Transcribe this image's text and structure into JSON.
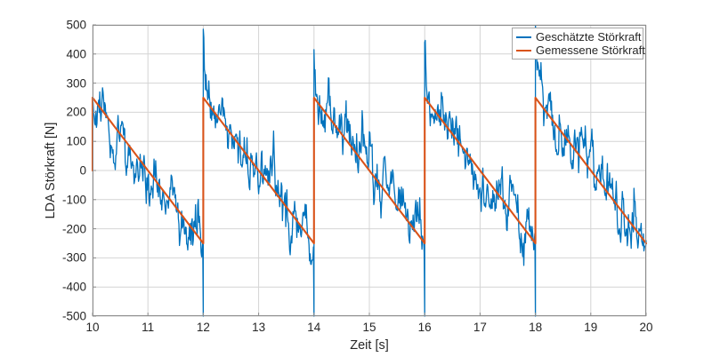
{
  "chart_data": {
    "type": "line",
    "title": "",
    "xlabel": "Zeit [s]",
    "ylabel": "LDA Störkraft [N]",
    "xlim": [
      10,
      20
    ],
    "ylim": [
      -500,
      500
    ],
    "xticks": [
      10,
      11,
      12,
      13,
      14,
      15,
      16,
      17,
      18,
      19,
      20
    ],
    "yticks": [
      -500,
      -400,
      -300,
      -200,
      -100,
      0,
      100,
      200,
      300,
      400,
      500
    ],
    "grid": true,
    "legend_position": "top-right",
    "series": [
      {
        "name": "Geschätzte Störkraft",
        "color": "#0072BD",
        "width": 1.3,
        "kind": "noisy_sawtooth",
        "generation": {
          "dt": 0.01,
          "seed": 1337,
          "start_value": 0,
          "sawtooth": {
            "t0": 10,
            "period": 2,
            "top": 250,
            "bottom": -250
          },
          "ar_alpha": 0.75,
          "ar_sigma": 36,
          "burst_prob": 0.012,
          "burst_min": 70,
          "burst_max": 200,
          "burst_decay": 0.7,
          "resets": [
            {
              "t": 12,
              "dip": -500,
              "peak": 485
            },
            {
              "t": 14,
              "dip": -500,
              "peak": 415
            },
            {
              "t": 16,
              "dip": -500,
              "peak": 440
            },
            {
              "t": 18,
              "dip": -500,
              "peak": 498
            }
          ],
          "peak_decay_tau": 0.045,
          "clamp": [
            -500,
            500
          ]
        }
      },
      {
        "name": "Gemessene Störkraft",
        "color": "#D95319",
        "width": 2.1,
        "kind": "polyline",
        "points": [
          [
            10,
            0
          ],
          [
            10,
            250
          ],
          [
            12,
            -250
          ],
          [
            12,
            250
          ],
          [
            14,
            -250
          ],
          [
            14,
            250
          ],
          [
            16,
            -250
          ],
          [
            16,
            250
          ],
          [
            18,
            -250
          ],
          [
            18,
            250
          ],
          [
            20,
            -250
          ]
        ]
      }
    ]
  },
  "legend": {
    "entries": [
      {
        "label": "Geschätzte Störkraft",
        "color": "#0072BD"
      },
      {
        "label": "Gemessene Störkraft",
        "color": "#D95319"
      }
    ]
  },
  "style_colors": {
    "background": "#ffffff",
    "grid": "#d4d4d4",
    "spine": "#8c8c8c",
    "text": "#262626",
    "legend_border": "#a6a6a6"
  }
}
